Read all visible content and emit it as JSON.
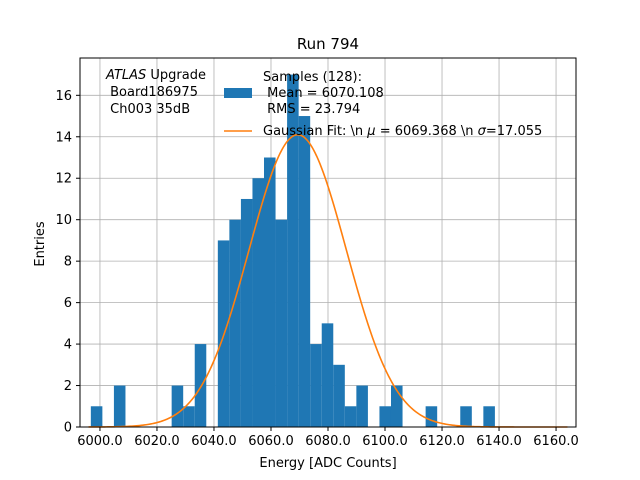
{
  "chart_data": {
    "type": "bar",
    "title": "Run 794",
    "xlabel": "Energy [ADC Counts]",
    "ylabel": "Entries",
    "xlim": [
      5993,
      6167
    ],
    "ylim": [
      0,
      17.8
    ],
    "xticks": [
      6000,
      6020,
      6040,
      6060,
      6080,
      6100,
      6120,
      6140,
      6160
    ],
    "xtick_labels": [
      "6000.0",
      "6020.0",
      "6040.0",
      "6060.0",
      "6080.0",
      "6100.0",
      "6120.0",
      "6140.0",
      "6160.0"
    ],
    "yticks": [
      0,
      2,
      4,
      6,
      8,
      10,
      12,
      14,
      16
    ],
    "ytick_labels": [
      "0",
      "2",
      "4",
      "6",
      "8",
      "10",
      "12",
      "14",
      "16"
    ],
    "grid": true,
    "bin_width": 4.05,
    "bins": [
      {
        "left": 5996.8,
        "count": 1
      },
      {
        "left": 6000.85,
        "count": 0
      },
      {
        "left": 6004.9,
        "count": 2
      },
      {
        "left": 6008.95,
        "count": 0
      },
      {
        "left": 6013.0,
        "count": 0
      },
      {
        "left": 6017.05,
        "count": 0
      },
      {
        "left": 6021.1,
        "count": 0
      },
      {
        "left": 6025.15,
        "count": 2
      },
      {
        "left": 6029.2,
        "count": 1
      },
      {
        "left": 6033.25,
        "count": 4
      },
      {
        "left": 6037.3,
        "count": 0
      },
      {
        "left": 6041.35,
        "count": 9
      },
      {
        "left": 6045.4,
        "count": 10
      },
      {
        "left": 6049.45,
        "count": 11
      },
      {
        "left": 6053.5,
        "count": 12
      },
      {
        "left": 6057.55,
        "count": 13
      },
      {
        "left": 6061.6,
        "count": 10
      },
      {
        "left": 6065.65,
        "count": 17
      },
      {
        "left": 6069.7,
        "count": 15
      },
      {
        "left": 6073.75,
        "count": 4
      },
      {
        "left": 6077.8,
        "count": 5
      },
      {
        "left": 6081.85,
        "count": 3
      },
      {
        "left": 6085.9,
        "count": 1
      },
      {
        "left": 6089.95,
        "count": 2
      },
      {
        "left": 6094.0,
        "count": 0
      },
      {
        "left": 6098.05,
        "count": 1
      },
      {
        "left": 6102.1,
        "count": 2
      },
      {
        "left": 6106.15,
        "count": 0
      },
      {
        "left": 6110.2,
        "count": 0
      },
      {
        "left": 6114.25,
        "count": 1
      },
      {
        "left": 6118.3,
        "count": 0
      },
      {
        "left": 6122.35,
        "count": 0
      },
      {
        "left": 6126.4,
        "count": 1
      },
      {
        "left": 6130.45,
        "count": 0
      },
      {
        "left": 6134.5,
        "count": 1
      }
    ],
    "fit": {
      "type": "gaussian",
      "mu": 6069.368,
      "sigma": 17.055,
      "amplitude": 14.1,
      "x_range": [
        5996,
        6164
      ]
    },
    "series_colors": {
      "histogram": "#1f77b4",
      "fit": "#ff7f0e"
    },
    "annotation": {
      "atlas": "ATLAS",
      "upgrade": " Upgrade",
      "line2": " Board186975",
      "line3": " Ch003 35dB"
    },
    "legend": {
      "position": "top-center",
      "hist_line1": "Samples (128):",
      "hist_line2": " Mean = 6070.108",
      "hist_line3": " RMS = 23.794",
      "fit_label_pre": "Gaussian Fit: \\n ",
      "fit_mu_symbol": "μ",
      "fit_label_mid": " = 6069.368 \\n ",
      "fit_sigma_symbol": "σ",
      "fit_label_post": "=17.055"
    }
  }
}
